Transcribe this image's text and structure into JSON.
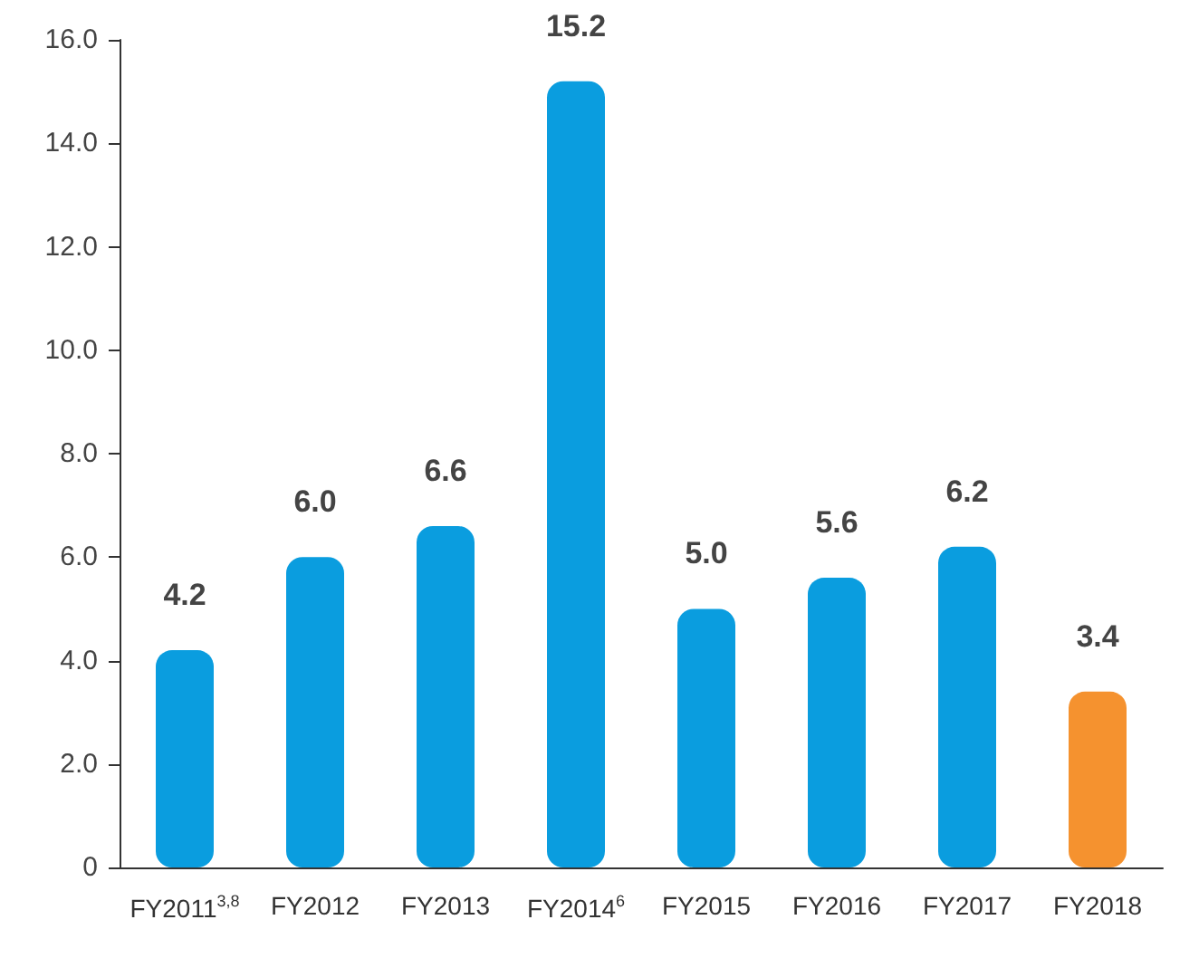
{
  "chart_data": {
    "type": "bar",
    "categories": [
      "FY2011$^{3,8}$",
      "FY2012",
      "FY2013",
      "FY2014$^{6}$",
      "FY2015",
      "FY2016",
      "FY2017",
      "FY2018"
    ],
    "values": [
      4.2,
      6.0,
      6.6,
      15.2,
      5.0,
      5.6,
      6.2,
      3.4
    ],
    "colors": [
      "#0a9ddf",
      "#0a9ddf",
      "#0a9ddf",
      "#0a9ddf",
      "#0a9ddf",
      "#0a9ddf",
      "#0a9ddf",
      "#f5922f"
    ],
    "value_labels": [
      "4.2",
      "6.0",
      "6.6",
      "15.2",
      "5.0",
      "5.6",
      "6.2",
      "3.4"
    ],
    "ylim": [
      0,
      16
    ],
    "yticks": [
      {
        "value": 0,
        "label": "0"
      },
      {
        "value": 2,
        "label": "2.0"
      },
      {
        "value": 4,
        "label": "4.0"
      },
      {
        "value": 6,
        "label": "6.0"
      },
      {
        "value": 8,
        "label": "8.0"
      },
      {
        "value": 10,
        "label": "10.0"
      },
      {
        "value": 12,
        "label": "12.0"
      },
      {
        "value": 14,
        "label": "14.0"
      },
      {
        "value": 16,
        "label": "16.0"
      }
    ],
    "grid": false
  }
}
